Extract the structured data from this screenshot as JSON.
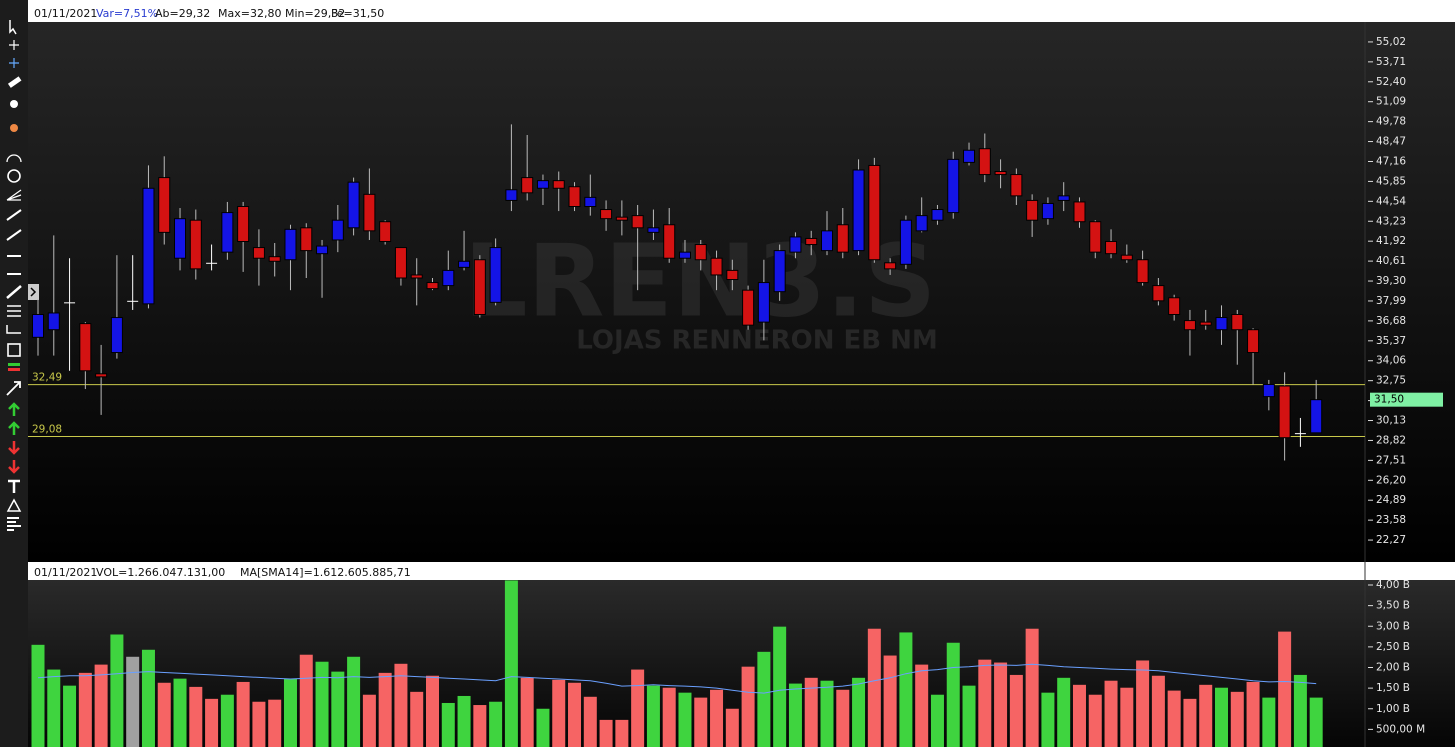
{
  "chart_data": [
    {
      "type": "candlestick",
      "date": "01/11/2021",
      "var": "Var=7,51%",
      "ab": "Ab=29,32",
      "max": "Max=32,80",
      "min": "Min=29,32",
      "fe": "Fe=31,50",
      "watermark": "LREN3.S",
      "watermark_sub": "LOJAS RENNERON EB NM",
      "up_color": "#1414e6",
      "down_color": "#d41212",
      "doji_color": "#ffffff",
      "open": [
        35.6,
        36.1,
        37.9,
        36.5,
        33.2,
        34.6,
        38.0,
        37.8,
        46.1,
        40.8,
        43.3,
        40.5,
        41.2,
        44.2,
        41.5,
        40.9,
        40.7,
        42.8,
        41.1,
        42.0,
        42.8,
        45.0,
        43.2,
        41.5,
        39.7,
        39.2,
        39.0,
        40.2,
        40.7,
        37.9,
        44.6,
        46.1,
        45.4,
        45.9,
        45.5,
        44.2,
        44.0,
        43.5,
        43.6,
        42.5,
        43.0,
        40.8,
        41.7,
        40.8,
        40.0,
        38.7,
        36.6,
        38.6,
        41.2,
        42.1,
        41.3,
        43.0,
        41.3,
        46.9,
        40.5,
        40.4,
        42.6,
        43.3,
        43.8,
        47.1,
        48.0,
        46.5,
        46.3,
        44.6,
        43.4,
        44.6,
        44.5,
        43.2,
        41.9,
        41.0,
        40.7,
        39.0,
        38.2,
        36.7,
        36.6,
        36.1,
        37.1,
        36.1,
        31.7,
        32.4,
        29.3,
        29.32
      ],
      "high": [
        38.1,
        42.3,
        40.8,
        36.6,
        35.1,
        41.0,
        41.0,
        46.9,
        47.5,
        44.1,
        44.0,
        41.7,
        44.5,
        44.5,
        42.7,
        41.8,
        43.0,
        43.1,
        42.0,
        44.3,
        46.1,
        46.7,
        43.3,
        41.5,
        40.8,
        39.5,
        41.3,
        42.6,
        41.0,
        42.1,
        49.6,
        48.9,
        46.3,
        46.5,
        45.8,
        46.3,
        44.6,
        44.6,
        44.3,
        44.0,
        44.1,
        42.0,
        42.0,
        41.3,
        40.7,
        39.0,
        40.7,
        41.7,
        42.5,
        42.6,
        43.9,
        44.1,
        47.3,
        47.4,
        40.8,
        43.6,
        44.8,
        44.3,
        47.8,
        48.4,
        49.0,
        47.3,
        46.7,
        45.0,
        44.8,
        45.8,
        44.8,
        43.3,
        42.7,
        41.7,
        41.3,
        39.5,
        38.4,
        37.4,
        37.4,
        37.7,
        37.4,
        36.2,
        32.8,
        33.3,
        30.3,
        32.8
      ],
      "low": [
        34.4,
        34.4,
        33.4,
        32.2,
        30.5,
        34.2,
        37.4,
        37.5,
        41.7,
        40.0,
        39.4,
        40.0,
        40.7,
        39.9,
        39.0,
        39.6,
        38.7,
        39.5,
        38.2,
        41.2,
        42.3,
        42.0,
        41.7,
        39.0,
        37.7,
        38.7,
        38.7,
        40.0,
        36.9,
        37.7,
        43.9,
        44.6,
        44.3,
        43.9,
        43.9,
        43.6,
        42.6,
        42.3,
        38.7,
        42.0,
        40.5,
        40.5,
        40.0,
        38.7,
        38.7,
        36.1,
        35.4,
        38.0,
        40.8,
        41.0,
        41.0,
        40.8,
        41.0,
        40.5,
        39.7,
        40.1,
        42.5,
        43.0,
        43.4,
        46.9,
        45.8,
        45.4,
        44.3,
        42.2,
        43.0,
        43.9,
        42.8,
        40.8,
        40.8,
        40.5,
        39.0,
        37.7,
        36.7,
        34.4,
        36.1,
        35.1,
        33.8,
        32.5,
        30.8,
        27.5,
        28.4,
        29.32
      ],
      "close": [
        37.1,
        37.2,
        37.9,
        33.4,
        33.0,
        36.9,
        38.0,
        45.4,
        42.5,
        43.4,
        40.1,
        40.5,
        43.8,
        41.9,
        40.8,
        40.6,
        42.7,
        41.3,
        41.6,
        43.3,
        45.8,
        42.6,
        41.9,
        39.5,
        39.5,
        38.8,
        40.0,
        40.6,
        37.1,
        41.5,
        45.3,
        45.1,
        45.9,
        45.4,
        44.2,
        44.8,
        43.4,
        43.3,
        42.8,
        42.8,
        40.8,
        41.2,
        40.7,
        39.7,
        39.4,
        36.4,
        39.2,
        41.3,
        42.2,
        41.7,
        42.6,
        41.2,
        46.6,
        40.7,
        40.1,
        43.3,
        43.6,
        44.0,
        47.3,
        47.9,
        46.3,
        46.3,
        44.9,
        43.3,
        44.4,
        44.9,
        43.2,
        41.2,
        41.1,
        40.7,
        39.2,
        38.0,
        37.1,
        36.1,
        36.4,
        36.9,
        36.1,
        34.6,
        32.5,
        29.0,
        29.3,
        31.5
      ],
      "hlines": [
        {
          "value": 32.49,
          "label": "32,49",
          "color": "#c8c84a"
        },
        {
          "value": 29.08,
          "label": "29,08",
          "color": "#c8c84a"
        }
      ],
      "last": {
        "value": 31.5,
        "label": "31,50",
        "color": "#7ff0a4"
      },
      "ylim": [
        20.96,
        56.33
      ],
      "yticks": [
        {
          "value": 55.02,
          "label": "55,02"
        },
        {
          "value": 53.71,
          "label": "53,71"
        },
        {
          "value": 52.4,
          "label": "52,40"
        },
        {
          "value": 51.09,
          "label": "51,09"
        },
        {
          "value": 49.78,
          "label": "49,78"
        },
        {
          "value": 48.47,
          "label": "48,47"
        },
        {
          "value": 47.16,
          "label": "47,16"
        },
        {
          "value": 45.85,
          "label": "45,85"
        },
        {
          "value": 44.54,
          "label": "44,54"
        },
        {
          "value": 43.23,
          "label": "43,23"
        },
        {
          "value": 41.92,
          "label": "41,92"
        },
        {
          "value": 40.61,
          "label": "40,61"
        },
        {
          "value": 39.3,
          "label": "39,30"
        },
        {
          "value": 37.99,
          "label": "37,99"
        },
        {
          "value": 36.68,
          "label": "36,68"
        },
        {
          "value": 35.37,
          "label": "35,37"
        },
        {
          "value": 34.06,
          "label": "34,06"
        },
        {
          "value": 32.75,
          "label": "32,75"
        },
        {
          "value": 31.44,
          "label": "31,44"
        },
        {
          "value": 30.13,
          "label": "30,13"
        },
        {
          "value": 28.82,
          "label": "28,82"
        },
        {
          "value": 27.51,
          "label": "27,51"
        },
        {
          "value": 26.2,
          "label": "26,20"
        },
        {
          "value": 24.89,
          "label": "24,89"
        },
        {
          "value": 23.58,
          "label": "23,58"
        },
        {
          "value": 22.27,
          "label": "22,27"
        }
      ]
    },
    {
      "type": "bar",
      "date": "01/11/2021",
      "vol": "VOL=1.266.047.131,00",
      "ma_label": "MA[SMA14]=1.612.605.885,71",
      "ma_color": "#6aa0ff",
      "values": [
        2.55,
        1.95,
        1.56,
        1.87,
        2.07,
        2.8,
        2.26,
        2.43,
        1.63,
        1.73,
        1.53,
        1.24,
        1.34,
        1.65,
        1.17,
        1.22,
        1.73,
        2.31,
        2.14,
        1.9,
        2.26,
        1.34,
        1.87,
        2.09,
        1.41,
        1.8,
        1.14,
        1.31,
        1.09,
        1.17,
        4.11,
        1.75,
        1.0,
        1.7,
        1.63,
        1.29,
        0.73,
        0.73,
        1.95,
        1.56,
        1.51,
        1.39,
        1.27,
        1.46,
        1.0,
        2.02,
        2.38,
        2.99,
        1.61,
        1.75,
        1.68,
        1.46,
        1.75,
        2.94,
        2.29,
        2.85,
        2.07,
        1.34,
        2.6,
        1.56,
        2.19,
        2.12,
        1.82,
        2.94,
        1.39,
        1.75,
        1.58,
        1.34,
        1.68,
        1.51,
        2.17,
        1.8,
        1.44,
        1.24,
        1.58,
        1.51,
        1.41,
        1.65,
        1.27,
        2.87,
        1.82,
        1.27
      ],
      "colors": [
        "#3fd43f",
        "#3fd43f",
        "#3fd43f",
        "#f66464",
        "#f66464",
        "#3fd43f",
        "#a0a0a0",
        "#3fd43f",
        "#f66464",
        "#3fd43f",
        "#f66464",
        "#f66464",
        "#3fd43f",
        "#f66464",
        "#f66464",
        "#f66464",
        "#3fd43f",
        "#f66464",
        "#3fd43f",
        "#3fd43f",
        "#3fd43f",
        "#f66464",
        "#f66464",
        "#f66464",
        "#f66464",
        "#f66464",
        "#3fd43f",
        "#3fd43f",
        "#f66464",
        "#3fd43f",
        "#3fd43f",
        "#f66464",
        "#3fd43f",
        "#f66464",
        "#f66464",
        "#f66464",
        "#f66464",
        "#f66464",
        "#f66464",
        "#3fd43f",
        "#f66464",
        "#3fd43f",
        "#f66464",
        "#f66464",
        "#f66464",
        "#f66464",
        "#3fd43f",
        "#3fd43f",
        "#3fd43f",
        "#f66464",
        "#3fd43f",
        "#f66464",
        "#3fd43f",
        "#f66464",
        "#f66464",
        "#3fd43f",
        "#f66464",
        "#3fd43f",
        "#3fd43f",
        "#3fd43f",
        "#f66464",
        "#f66464",
        "#f66464",
        "#f66464",
        "#3fd43f",
        "#3fd43f",
        "#f66464",
        "#f66464",
        "#f66464",
        "#f66464",
        "#f66464",
        "#f66464",
        "#f66464",
        "#f66464",
        "#f66464",
        "#3fd43f",
        "#f66464",
        "#f66464",
        "#3fd43f",
        "#f66464",
        "#3fd43f",
        "#3fd43f"
      ],
      "ma": [
        1.75,
        1.78,
        1.8,
        1.8,
        1.82,
        1.85,
        1.88,
        1.9,
        1.88,
        1.86,
        1.84,
        1.82,
        1.8,
        1.78,
        1.76,
        1.74,
        1.72,
        1.74,
        1.76,
        1.75,
        1.78,
        1.76,
        1.78,
        1.8,
        1.78,
        1.76,
        1.74,
        1.72,
        1.7,
        1.68,
        1.78,
        1.76,
        1.74,
        1.72,
        1.7,
        1.68,
        1.62,
        1.55,
        1.56,
        1.58,
        1.56,
        1.55,
        1.53,
        1.5,
        1.45,
        1.4,
        1.38,
        1.45,
        1.48,
        1.5,
        1.52,
        1.55,
        1.6,
        1.68,
        1.75,
        1.85,
        1.92,
        1.95,
        2.0,
        2.02,
        2.05,
        2.06,
        2.05,
        2.08,
        2.05,
        2.02,
        2.0,
        1.98,
        1.96,
        1.95,
        1.94,
        1.92,
        1.88,
        1.84,
        1.8,
        1.76,
        1.72,
        1.68,
        1.65,
        1.66,
        1.64,
        1.61
      ],
      "ylim": [
        0,
        4.0
      ],
      "yticks": [
        {
          "value": 4.0,
          "label": "4,00 B"
        },
        {
          "value": 3.5,
          "label": "3,50 B"
        },
        {
          "value": 3.0,
          "label": "3,00 B"
        },
        {
          "value": 2.5,
          "label": "2,50 B"
        },
        {
          "value": 2.0,
          "label": "2,00 B"
        },
        {
          "value": 1.5,
          "label": "1,50 B"
        },
        {
          "value": 1.0,
          "label": "1,00 B"
        },
        {
          "value": 0.5,
          "label": "500,00 M"
        }
      ]
    }
  ]
}
